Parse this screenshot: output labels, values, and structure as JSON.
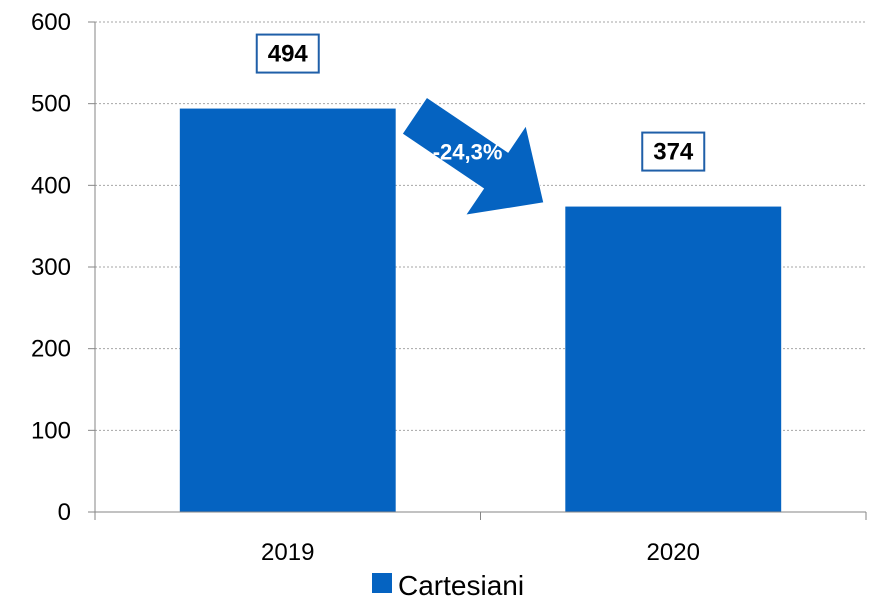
{
  "chart_data": {
    "type": "bar",
    "categories": [
      "2019",
      "2020"
    ],
    "series": [
      {
        "name": "Cartesiani",
        "values": [
          494,
          374
        ]
      }
    ],
    "data_labels": [
      "494",
      "374"
    ],
    "ylim": [
      0,
      600
    ],
    "yticks": [
      "0",
      "100",
      "200",
      "300",
      "400",
      "500",
      "600"
    ],
    "grid": true,
    "legend_position": "bottom",
    "annotation": "-24,3%",
    "colors": {
      "bar": "#0563C1",
      "label_border": "#1F5FA8",
      "grid": "#A6A6A6",
      "axis": "#868686",
      "arrow": "#0563C1"
    }
  }
}
